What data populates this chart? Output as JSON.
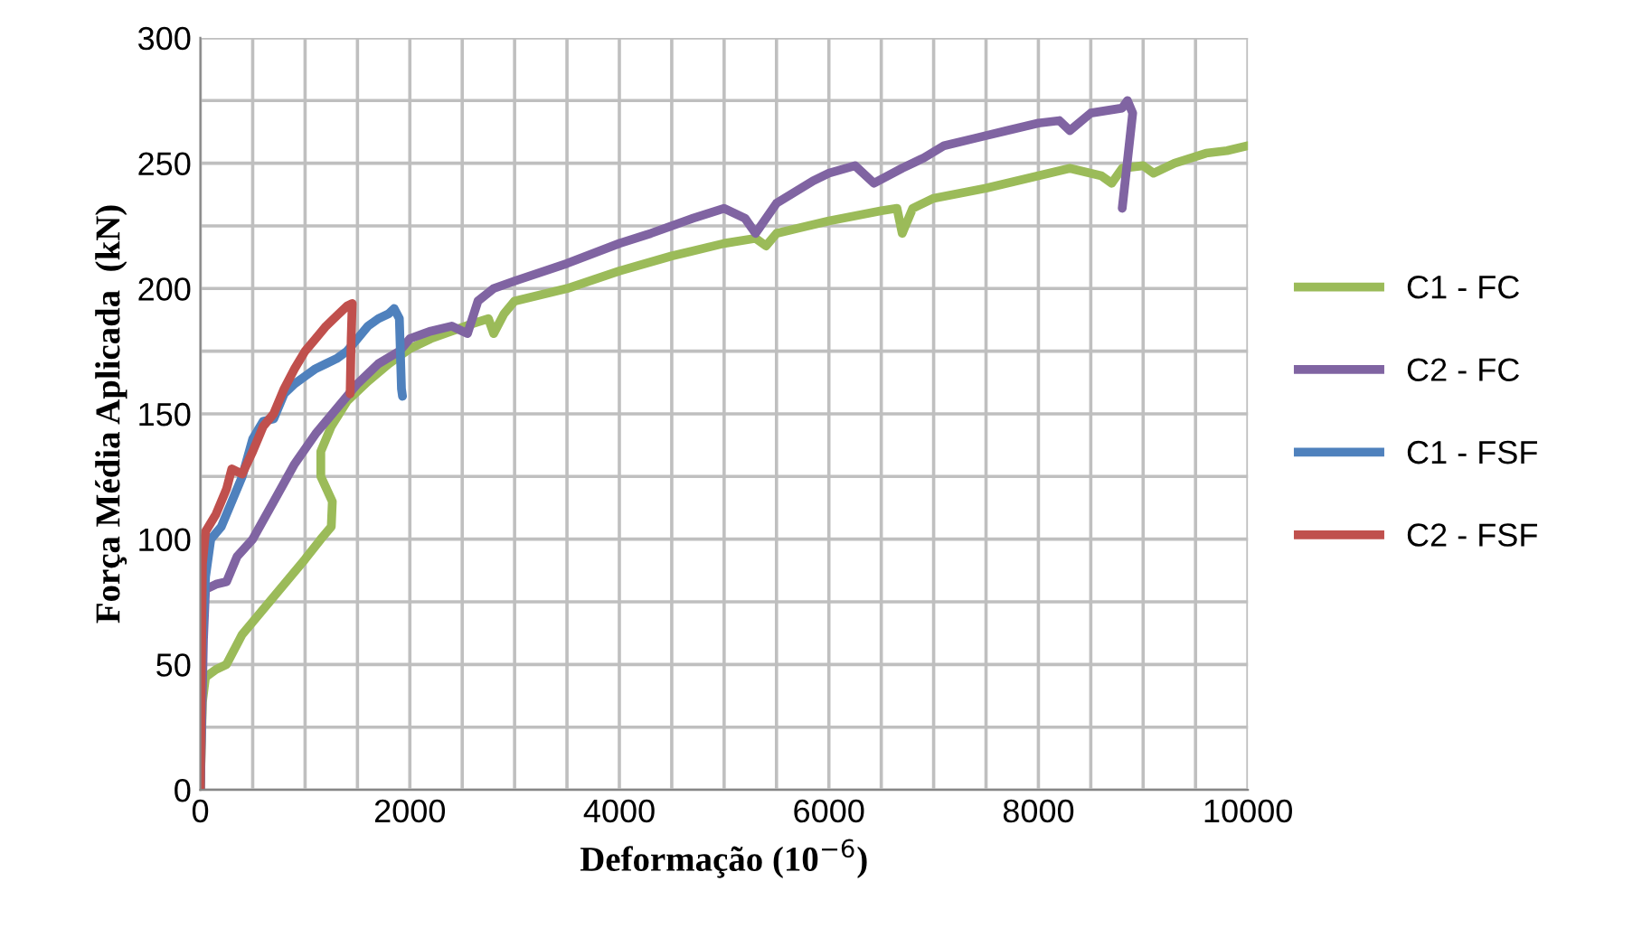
{
  "chart_data": {
    "type": "line",
    "xlabel": "Deformação (10$^{−6}$)",
    "ylabel": "Força Média Aplicada  (kN)",
    "xlim": [
      0,
      10000
    ],
    "ylim": [
      0,
      300
    ],
    "xticks": [
      0,
      {
        "value": 500,
        "label": null
      },
      2000,
      {
        "value": 1000,
        "label": null
      },
      {
        "value": 1500,
        "label": null
      },
      {
        "value": 2500,
        "label": null
      },
      {
        "value": 3000,
        "label": null
      },
      {
        "value": 3500,
        "label": null
      },
      4000,
      {
        "value": 4500,
        "label": null
      },
      {
        "value": 5000,
        "label": null
      },
      {
        "value": 5500,
        "label": null
      },
      6000,
      {
        "value": 6500,
        "label": null
      },
      {
        "value": 7000,
        "label": null
      },
      {
        "value": 7500,
        "label": null
      },
      8000,
      {
        "value": 8500,
        "label": null
      },
      {
        "value": 9000,
        "label": null
      },
      {
        "value": 9500,
        "label": null
      },
      10000
    ],
    "yticks": [
      0,
      {
        "value": 25,
        "label": null
      },
      50,
      {
        "value": 75,
        "label": null
      },
      100,
      {
        "value": 125,
        "label": null
      },
      150,
      {
        "value": 175,
        "label": null
      },
      200,
      {
        "value": 225,
        "label": null
      },
      250,
      {
        "value": 275,
        "label": null
      },
      300
    ],
    "grid": true,
    "legend": "right",
    "marker": "none",
    "line_style": "solid",
    "series": [
      {
        "name": "C1 - FC",
        "color": "#9bbb59",
        "x": [
          0,
          20,
          50,
          150,
          250,
          400,
          600,
          800,
          1000,
          1150,
          1250,
          1260,
          1150,
          1150,
          1250,
          1400,
          1600,
          1800,
          2000,
          2200,
          2400,
          2600,
          2750,
          2800,
          2900,
          3000,
          3500,
          4000,
          4500,
          5000,
          5300,
          5400,
          5500,
          6000,
          6500,
          6650,
          6700,
          6800,
          7000,
          7500,
          8000,
          8300,
          8600,
          8700,
          8800,
          9000,
          9100,
          9300,
          9600,
          9800,
          10000
        ],
        "values": [
          0,
          35,
          45,
          48,
          50,
          62,
          72,
          82,
          92,
          100,
          105,
          115,
          125,
          135,
          145,
          155,
          163,
          170,
          176,
          180,
          183,
          186,
          188,
          182,
          190,
          195,
          200,
          207,
          213,
          218,
          220,
          217,
          222,
          227,
          231,
          232,
          222,
          232,
          236,
          240,
          245,
          248,
          245,
          242,
          248,
          249,
          246,
          250,
          254,
          255,
          257
        ]
      },
      {
        "name": "C2 - FC",
        "color": "#8064a2",
        "x": [
          0,
          30,
          50,
          150,
          250,
          350,
          500,
          700,
          900,
          1100,
          1300,
          1500,
          1700,
          1900,
          2000,
          2200,
          2400,
          2550,
          2650,
          2800,
          3000,
          3500,
          4000,
          4300,
          4700,
          5000,
          5200,
          5300,
          5500,
          5850,
          6000,
          6250,
          6430,
          6700,
          6900,
          7100,
          7400,
          7700,
          8000,
          8200,
          8300,
          8500,
          8800,
          8850,
          8900,
          8800
        ],
        "values": [
          0,
          60,
          80,
          82,
          83,
          93,
          100,
          115,
          130,
          142,
          152,
          162,
          170,
          175,
          180,
          183,
          185,
          182,
          195,
          200,
          203,
          210,
          218,
          222,
          228,
          232,
          228,
          222,
          234,
          243,
          246,
          249,
          242,
          248,
          252,
          257,
          260,
          263,
          266,
          267,
          263,
          270,
          272,
          275,
          270,
          232
        ]
      },
      {
        "name": "C1 - FSF",
        "color": "#4f81bd",
        "x": [
          0,
          20,
          50,
          100,
          200,
          300,
          400,
          500,
          600,
          700,
          800,
          900,
          1000,
          1100,
          1200,
          1300,
          1400,
          1500,
          1600,
          1700,
          1800,
          1850,
          1900,
          1920,
          1930
        ],
        "values": [
          0,
          60,
          85,
          100,
          105,
          115,
          125,
          140,
          147,
          148,
          158,
          162,
          165,
          168,
          170,
          172,
          175,
          180,
          185,
          188,
          190,
          192,
          188,
          160,
          157
        ]
      },
      {
        "name": "C2 - FSF",
        "color": "#c0504d",
        "x": [
          0,
          20,
          50,
          150,
          250,
          300,
          400,
          500,
          600,
          700,
          800,
          900,
          1000,
          1100,
          1200,
          1300,
          1400,
          1450,
          1440,
          1430
        ],
        "values": [
          0,
          90,
          103,
          110,
          120,
          128,
          126,
          135,
          145,
          150,
          160,
          168,
          175,
          180,
          185,
          189,
          193,
          194,
          180,
          158
        ]
      }
    ]
  }
}
